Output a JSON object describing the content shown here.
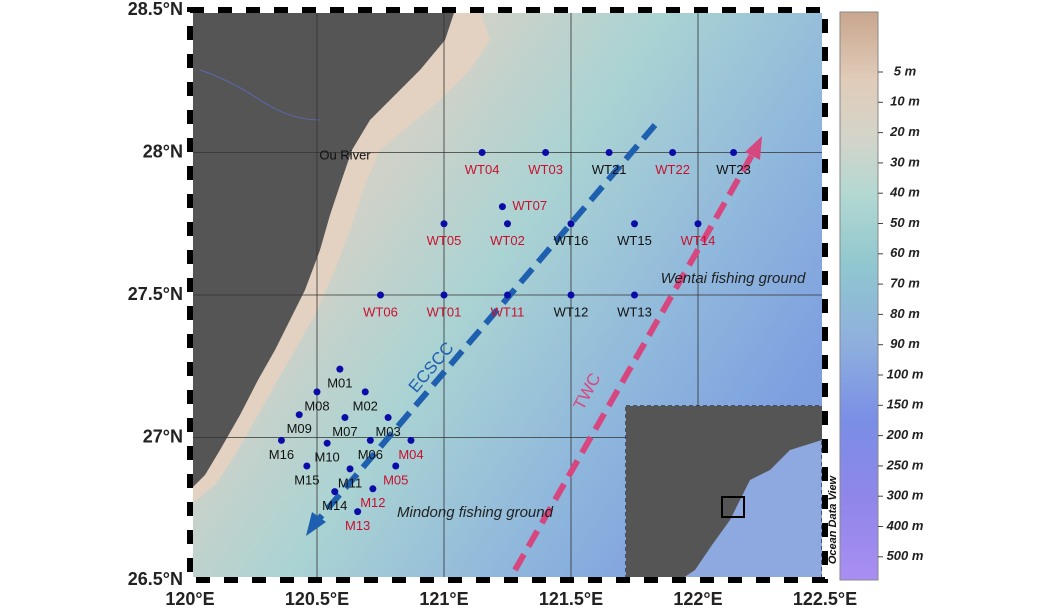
{
  "map": {
    "lon_ticks": [
      {
        "value": 120,
        "label": "120°E"
      },
      {
        "value": 120.5,
        "label": "120.5°E"
      },
      {
        "value": 121,
        "label": "121°E"
      },
      {
        "value": 121.5,
        "label": "121.5°E"
      },
      {
        "value": 122,
        "label": "122°E"
      },
      {
        "value": 122.5,
        "label": "122.5°E"
      }
    ],
    "lat_ticks": [
      {
        "value": 26.5,
        "label": "26.5°N"
      },
      {
        "value": 27,
        "label": "27°N"
      },
      {
        "value": 27.5,
        "label": "27.5°N"
      },
      {
        "value": 28,
        "label": "28°N"
      },
      {
        "value": 28.5,
        "label": "28.5°N"
      }
    ],
    "stations": [
      {
        "name": "WT04",
        "lon": 121.15,
        "lat": 28.0,
        "color": "#c8102e"
      },
      {
        "name": "WT03",
        "lon": 121.4,
        "lat": 28.0,
        "color": "#c8102e"
      },
      {
        "name": "WT21",
        "lon": 121.65,
        "lat": 28.0,
        "color": "#111111"
      },
      {
        "name": "WT22",
        "lon": 121.9,
        "lat": 28.0,
        "color": "#c8102e"
      },
      {
        "name": "WT23",
        "lon": 122.14,
        "lat": 28.0,
        "color": "#111111"
      },
      {
        "name": "WT07",
        "lon": 121.23,
        "lat": 27.81,
        "color": "#c8102e"
      },
      {
        "name": "WT05",
        "lon": 121.0,
        "lat": 27.75,
        "color": "#c8102e"
      },
      {
        "name": "WT02",
        "lon": 121.25,
        "lat": 27.75,
        "color": "#c8102e"
      },
      {
        "name": "WT16",
        "lon": 121.5,
        "lat": 27.75,
        "color": "#111111"
      },
      {
        "name": "WT15",
        "lon": 121.75,
        "lat": 27.75,
        "color": "#111111"
      },
      {
        "name": "WT14",
        "lon": 122.0,
        "lat": 27.75,
        "color": "#c8102e"
      },
      {
        "name": "WT06",
        "lon": 120.75,
        "lat": 27.5,
        "color": "#c8102e"
      },
      {
        "name": "WT01",
        "lon": 121.0,
        "lat": 27.5,
        "color": "#c8102e"
      },
      {
        "name": "WT11",
        "lon": 121.25,
        "lat": 27.5,
        "color": "#c8102e"
      },
      {
        "name": "WT12",
        "lon": 121.5,
        "lat": 27.5,
        "color": "#111111"
      },
      {
        "name": "WT13",
        "lon": 121.75,
        "lat": 27.5,
        "color": "#111111"
      },
      {
        "name": "M01",
        "lon": 120.59,
        "lat": 27.24,
        "color": "#111111"
      },
      {
        "name": "M08",
        "lon": 120.5,
        "lat": 27.16,
        "color": "#111111"
      },
      {
        "name": "M02",
        "lon": 120.69,
        "lat": 27.16,
        "color": "#111111"
      },
      {
        "name": "M09",
        "lon": 120.43,
        "lat": 27.08,
        "color": "#111111"
      },
      {
        "name": "M07",
        "lon": 120.61,
        "lat": 27.07,
        "color": "#111111"
      },
      {
        "name": "M03",
        "lon": 120.78,
        "lat": 27.07,
        "color": "#111111"
      },
      {
        "name": "M16",
        "lon": 120.36,
        "lat": 26.99,
        "color": "#111111"
      },
      {
        "name": "M10",
        "lon": 120.54,
        "lat": 26.98,
        "color": "#111111"
      },
      {
        "name": "M06",
        "lon": 120.71,
        "lat": 26.99,
        "color": "#111111"
      },
      {
        "name": "M04",
        "lon": 120.87,
        "lat": 26.99,
        "color": "#c8102e"
      },
      {
        "name": "M15",
        "lon": 120.46,
        "lat": 26.9,
        "color": "#111111"
      },
      {
        "name": "M11",
        "lon": 120.63,
        "lat": 26.89,
        "color": "#111111"
      },
      {
        "name": "M05",
        "lon": 120.81,
        "lat": 26.9,
        "color": "#c8102e"
      },
      {
        "name": "M14",
        "lon": 120.57,
        "lat": 26.81,
        "color": "#111111"
      },
      {
        "name": "M12",
        "lon": 120.72,
        "lat": 26.82,
        "color": "#c8102e"
      },
      {
        "name": "M13",
        "lon": 120.66,
        "lat": 26.74,
        "color": "#c8102e"
      }
    ],
    "annotations": {
      "river": "Ou River",
      "coastal_current": "ECSCC",
      "warm_current": "TWC",
      "wentai": "Wentai fishing ground",
      "mindong": "Mindong fishing ground"
    },
    "colorbar": {
      "ticks": [
        {
          "value": 5,
          "label": "5 m"
        },
        {
          "value": 10,
          "label": "10 m"
        },
        {
          "value": 20,
          "label": "20 m"
        },
        {
          "value": 30,
          "label": "30 m"
        },
        {
          "value": 40,
          "label": "40 m"
        },
        {
          "value": 50,
          "label": "50 m"
        },
        {
          "value": 60,
          "label": "60 m"
        },
        {
          "value": 70,
          "label": "70 m"
        },
        {
          "value": 80,
          "label": "80 m"
        },
        {
          "value": 90,
          "label": "90 m"
        },
        {
          "value": 100,
          "label": "100 m"
        },
        {
          "value": 150,
          "label": "150 m"
        },
        {
          "value": 200,
          "label": "200 m"
        },
        {
          "value": 250,
          "label": "250 m"
        },
        {
          "value": 300,
          "label": "300 m"
        },
        {
          "value": 400,
          "label": "400 m"
        },
        {
          "value": 500,
          "label": "500 m"
        }
      ]
    },
    "credit": "Ocean Data View"
  }
}
